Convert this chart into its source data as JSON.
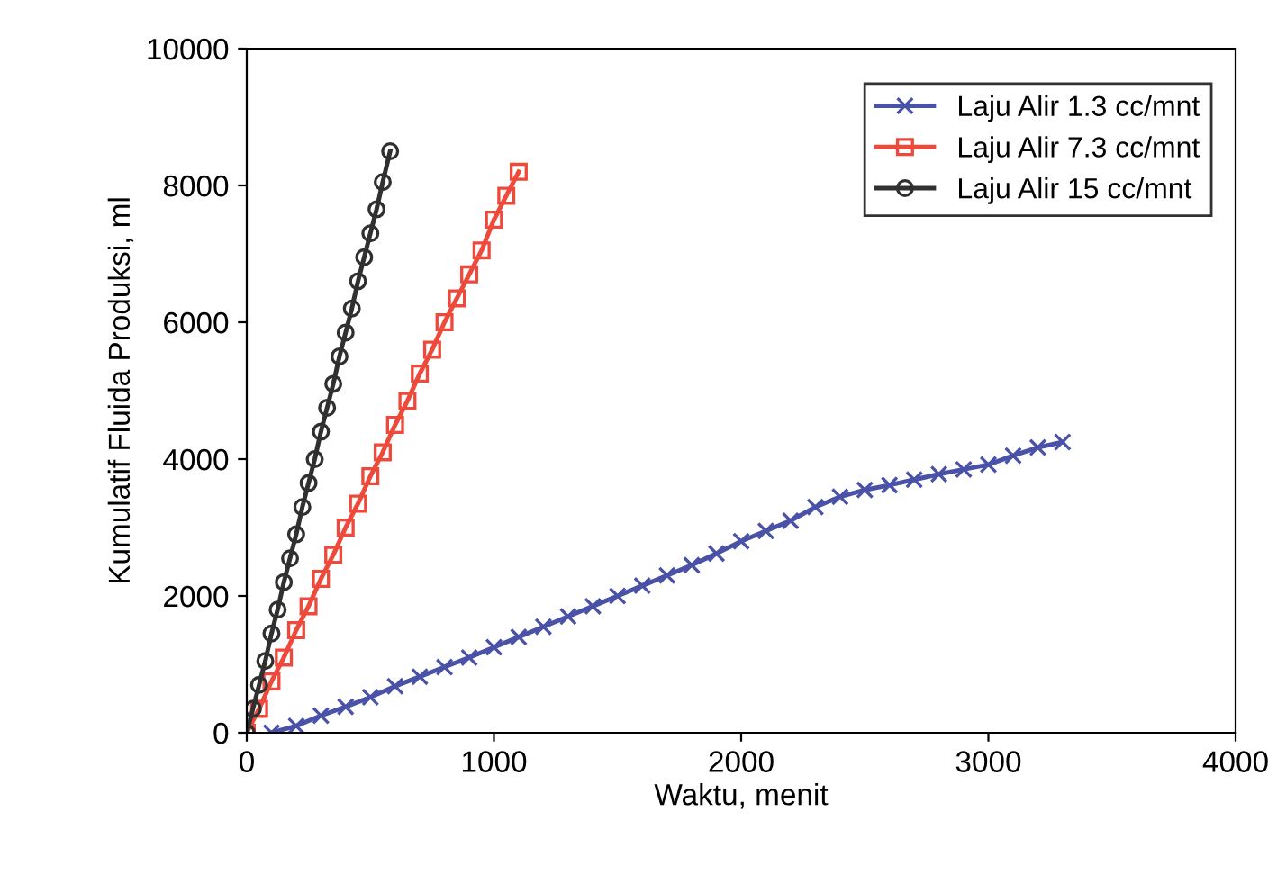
{
  "chart_data": {
    "type": "line",
    "xlabel": "Waktu, menit",
    "ylabel": "Kumulatif Fluida Produksi, ml",
    "xlim": [
      0,
      4000
    ],
    "ylim": [
      0,
      10000
    ],
    "xticks": [
      0,
      1000,
      2000,
      3000,
      4000
    ],
    "yticks": [
      0,
      2000,
      4000,
      6000,
      8000,
      10000
    ],
    "grid": false,
    "legend": "top right",
    "series": [
      {
        "name": "Laju Alir 1.3 cc/mnt",
        "color": "#4a52a8",
        "marker": "cross",
        "x": [
          100,
          200,
          300,
          400,
          500,
          600,
          700,
          800,
          900,
          1000,
          1100,
          1200,
          1300,
          1400,
          1500,
          1600,
          1700,
          1800,
          1900,
          2000,
          2100,
          2200,
          2300,
          2400,
          2500,
          2600,
          2700,
          2800,
          2900,
          3000,
          3100,
          3200,
          3300
        ],
        "values": [
          0,
          100,
          250,
          380,
          520,
          680,
          820,
          960,
          1100,
          1250,
          1400,
          1550,
          1700,
          1850,
          2000,
          2150,
          2300,
          2450,
          2620,
          2800,
          2950,
          3100,
          3300,
          3450,
          3550,
          3620,
          3700,
          3780,
          3850,
          3920,
          4050,
          4170,
          4250
        ]
      },
      {
        "name": "Laju Alir 7.3 cc/mnt",
        "color": "#ee4a3c",
        "marker": "square",
        "x": [
          0,
          50,
          100,
          150,
          200,
          250,
          300,
          350,
          400,
          450,
          500,
          550,
          600,
          650,
          700,
          750,
          800,
          850,
          900,
          950,
          1000,
          1050,
          1100
        ],
        "values": [
          0,
          350,
          750,
          1100,
          1500,
          1850,
          2250,
          2600,
          3000,
          3350,
          3750,
          4100,
          4500,
          4850,
          5250,
          5600,
          6000,
          6350,
          6700,
          7050,
          7500,
          7850,
          8200
        ]
      },
      {
        "name": "Laju Alir 15 cc/mnt",
        "color": "#303030",
        "marker": "circle",
        "x": [
          0,
          25,
          50,
          75,
          100,
          125,
          150,
          175,
          200,
          225,
          250,
          275,
          300,
          325,
          350,
          375,
          400,
          425,
          450,
          475,
          500,
          525,
          550,
          580
        ],
        "values": [
          0,
          350,
          700,
          1050,
          1450,
          1800,
          2200,
          2550,
          2900,
          3300,
          3650,
          4000,
          4400,
          4750,
          5100,
          5500,
          5850,
          6200,
          6600,
          6950,
          7300,
          7650,
          8050,
          8500
        ]
      }
    ]
  }
}
